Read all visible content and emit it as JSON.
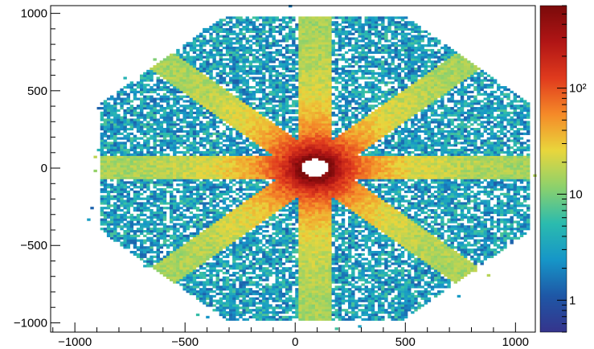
{
  "chart_data": {
    "type": "heatmap",
    "title": "",
    "xlabel": "",
    "ylabel": "",
    "xlim": [
      -1110,
      1090
    ],
    "ylim": [
      -1060,
      1050
    ],
    "x_ticks": [
      {
        "value": -1000,
        "label": "−1000"
      },
      {
        "value": -500,
        "label": "−500"
      },
      {
        "value": 0,
        "label": "0"
      },
      {
        "value": 500,
        "label": "500"
      },
      {
        "value": 1000,
        "label": "1000"
      }
    ],
    "y_ticks": [
      {
        "value": 1000,
        "label": "1000"
      },
      {
        "value": 500,
        "label": "500"
      },
      {
        "value": 0,
        "label": "0"
      },
      {
        "value": -500,
        "label": "−500"
      },
      {
        "value": -1000,
        "label": "−1000"
      }
    ],
    "z_scale": "log",
    "zlim": [
      0.5,
      600
    ],
    "z_ticks": [
      {
        "value": 1,
        "label": "1"
      },
      {
        "value": 10,
        "label": "10"
      },
      {
        "value": 100,
        "label": "10²"
      }
    ],
    "colormap": [
      "#35348c",
      "#1e57a6",
      "#1696c8",
      "#2bbbae",
      "#8cd16c",
      "#e9d63c",
      "#f58a28",
      "#e03a1d",
      "#b01515",
      "#7a0a0a"
    ],
    "pattern": {
      "description_of_data": "octagonal occupancy distribution with 8 dense radial arms",
      "center": [
        90,
        0
      ],
      "center_hole_radius": 60,
      "octagon_radius": 980,
      "arm_angles_deg": [
        0,
        45,
        90,
        135,
        180,
        225,
        270,
        315
      ],
      "arm_half_width": 75,
      "arm_peak_count": 500,
      "background_count": 3
    }
  }
}
